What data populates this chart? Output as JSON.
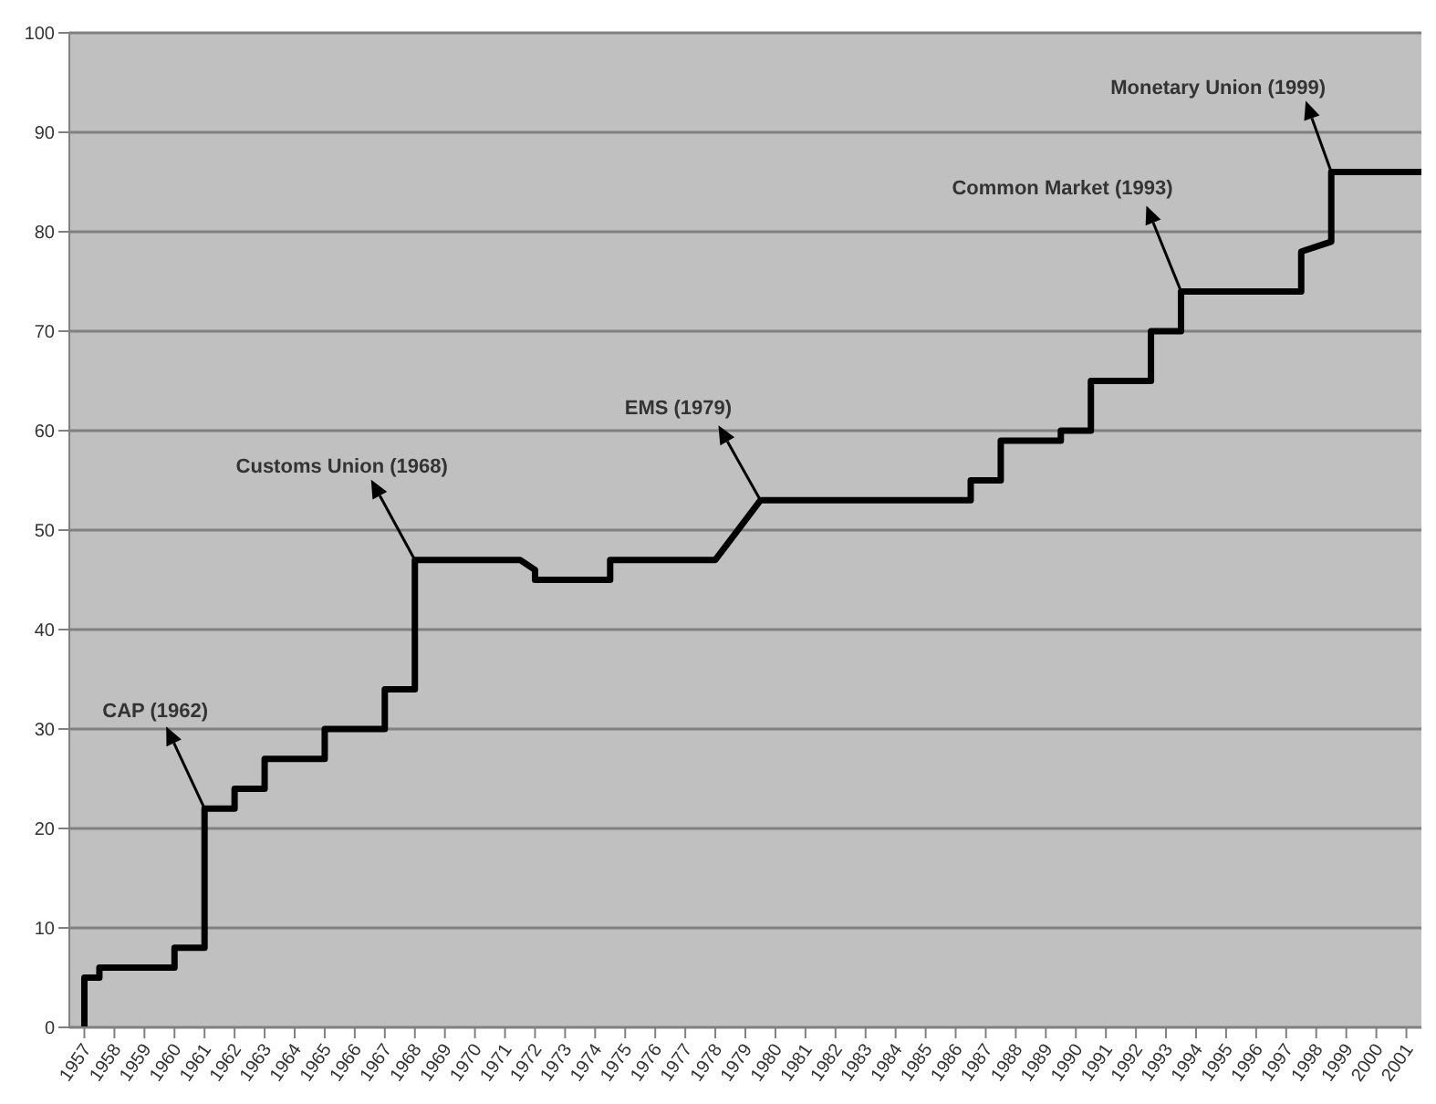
{
  "chart_data": {
    "type": "line",
    "color": "#000000",
    "x": [
      1957,
      1957,
      1957.5,
      1957.5,
      1960,
      1960,
      1961,
      1961,
      1962,
      1962,
      1963,
      1963,
      1965,
      1965,
      1967,
      1967,
      1968,
      1968,
      1971.5,
      1972,
      1972,
      1974.5,
      1974.5,
      1978,
      1979.5,
      1986.5,
      1986.5,
      1987.5,
      1987.5,
      1989.5,
      1989.5,
      1990.5,
      1990.5,
      1992.5,
      1992.5,
      1993.5,
      1993.5,
      1997.5,
      1997.5,
      1998.5,
      1998.5,
      2001.5
    ],
    "values": [
      0,
      5,
      5,
      6,
      6,
      8,
      8,
      22,
      22,
      24,
      24,
      27,
      27,
      30,
      30,
      34,
      34,
      47,
      47,
      46,
      45,
      45,
      47,
      47,
      53,
      53,
      55,
      55,
      59,
      59,
      60,
      60,
      65,
      65,
      70,
      70,
      74,
      74,
      78,
      79,
      86,
      86
    ],
    "xlim": [
      1956.5,
      2001.5
    ],
    "xticks": [
      1957,
      1958,
      1959,
      1960,
      1961,
      1962,
      1963,
      1964,
      1965,
      1966,
      1967,
      1968,
      1969,
      1970,
      1971,
      1972,
      1973,
      1974,
      1975,
      1976,
      1977,
      1978,
      1979,
      1980,
      1981,
      1982,
      1983,
      1984,
      1985,
      1986,
      1987,
      1988,
      1989,
      1990,
      1991,
      1992,
      1993,
      1994,
      1995,
      1996,
      1997,
      1998,
      1999,
      2000,
      2001
    ],
    "ylim": [
      0,
      100
    ],
    "yticks": [
      0,
      10,
      20,
      30,
      40,
      50,
      60,
      70,
      80,
      90,
      100
    ],
    "grid": "y",
    "annotations": [
      {
        "text": "CAP (1962)",
        "x": 1961,
        "y": 22
      },
      {
        "text": "Customs Union (1968)",
        "x": 1968,
        "y": 47
      },
      {
        "text": "EMS (1979)",
        "x": 1979.5,
        "y": 53
      },
      {
        "text": "Common Market (1993)",
        "x": 1993.5,
        "y": 74
      },
      {
        "text": "Monetary Union (1999)",
        "x": 1998.5,
        "y": 86
      }
    ]
  }
}
